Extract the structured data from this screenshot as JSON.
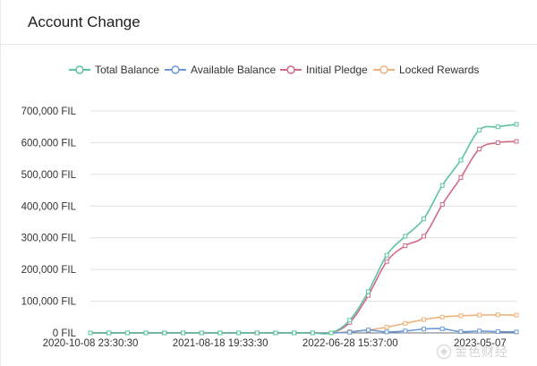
{
  "header": {
    "title": "Account Change"
  },
  "legend": [
    {
      "label": "Total Balance",
      "color": "#5bc49f"
    },
    {
      "label": "Available Balance",
      "color": "#6b9ad6"
    },
    {
      "label": "Initial Pledge",
      "color": "#d26b84"
    },
    {
      "label": "Locked Rewards",
      "color": "#f0b27a"
    }
  ],
  "watermark": {
    "text": "金色财经"
  },
  "chart_data": {
    "type": "line",
    "ylim": [
      0,
      700000
    ],
    "yticks": [
      "0 FIL",
      "100,000 FIL",
      "200,000 FIL",
      "300,000 FIL",
      "400,000 FIL",
      "500,000 FIL",
      "600,000 FIL",
      "700,000 FIL"
    ],
    "xticks": [
      "2020-10-08 23:30:30",
      "2021-08-18 19:33:30",
      "2022-06-28 15:37:00",
      "2023-05-07"
    ],
    "x_count": 24,
    "grid": true,
    "legend_position": "top",
    "series": [
      {
        "name": "Total Balance",
        "color": "#5bc49f",
        "values": [
          0,
          0,
          0,
          0,
          0,
          0,
          0,
          0,
          0,
          0,
          0,
          0,
          0,
          0,
          40000,
          130000,
          245000,
          305000,
          360000,
          465000,
          545000,
          640000,
          650000,
          658000
        ]
      },
      {
        "name": "Available Balance",
        "color": "#6b9ad6",
        "values": [
          0,
          0,
          0,
          0,
          0,
          0,
          0,
          0,
          0,
          0,
          0,
          0,
          0,
          0,
          2000,
          9000,
          3000,
          6000,
          12000,
          13000,
          4000,
          6000,
          4000,
          3000
        ]
      },
      {
        "name": "Initial Pledge",
        "color": "#d26b84",
        "values": [
          0,
          0,
          0,
          0,
          0,
          0,
          0,
          0,
          0,
          0,
          0,
          0,
          0,
          0,
          33000,
          118000,
          225000,
          275000,
          305000,
          405000,
          490000,
          580000,
          600000,
          604000
        ]
      },
      {
        "name": "Locked Rewards",
        "color": "#f0b27a",
        "values": [
          0,
          0,
          0,
          0,
          0,
          0,
          0,
          0,
          0,
          0,
          0,
          0,
          0,
          0,
          4000,
          9000,
          18000,
          30000,
          42000,
          50000,
          54000,
          56000,
          57000,
          56000
        ]
      }
    ]
  }
}
